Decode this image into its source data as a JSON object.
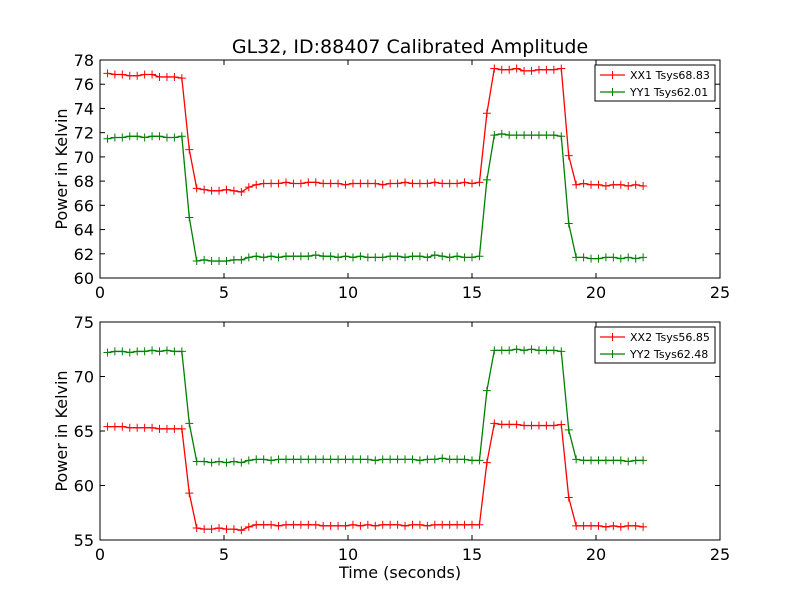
{
  "title": "GL32, ID:88407 Calibrated Amplitude",
  "colors": {
    "red": "#ff0000",
    "green": "#008000"
  },
  "chart_data": [
    {
      "type": "line",
      "title": "",
      "xlabel": "",
      "ylabel": "Power in Kelvin",
      "xlim": [
        0,
        25
      ],
      "ylim": [
        60,
        78
      ],
      "xticks": [
        0,
        5,
        10,
        15,
        20,
        25
      ],
      "yticks": [
        60,
        62,
        64,
        66,
        68,
        70,
        72,
        74,
        76,
        78
      ],
      "grid": false,
      "legend_position": "top-right",
      "series": [
        {
          "name": "XX1 Tsys68.83",
          "color": "#ff0000",
          "x": [
            0.3,
            0.6,
            0.9,
            1.2,
            1.5,
            1.8,
            2.1,
            2.4,
            2.7,
            3.0,
            3.3,
            3.6,
            3.9,
            4.2,
            4.5,
            4.8,
            5.1,
            5.4,
            5.7,
            6.0,
            6.3,
            6.6,
            6.9,
            7.2,
            7.5,
            7.8,
            8.1,
            8.4,
            8.7,
            9.0,
            9.3,
            9.6,
            9.9,
            10.2,
            10.5,
            10.8,
            11.1,
            11.4,
            11.7,
            12.0,
            12.3,
            12.6,
            12.9,
            13.2,
            13.5,
            13.8,
            14.1,
            14.4,
            14.7,
            15.0,
            15.3,
            15.6,
            15.9,
            16.2,
            16.5,
            16.8,
            17.1,
            17.4,
            17.7,
            18.0,
            18.3,
            18.6,
            18.9,
            19.2,
            19.5,
            19.8,
            20.1,
            20.4,
            20.7,
            21.0,
            21.3,
            21.6,
            21.9
          ],
          "y": [
            76.9,
            76.8,
            76.8,
            76.7,
            76.7,
            76.8,
            76.8,
            76.6,
            76.6,
            76.6,
            76.5,
            70.6,
            67.4,
            67.3,
            67.2,
            67.2,
            67.3,
            67.2,
            67.1,
            67.5,
            67.7,
            67.8,
            67.8,
            67.8,
            67.9,
            67.8,
            67.8,
            67.9,
            67.9,
            67.8,
            67.8,
            67.8,
            67.7,
            67.8,
            67.8,
            67.8,
            67.8,
            67.7,
            67.8,
            67.8,
            67.9,
            67.8,
            67.8,
            67.8,
            67.9,
            67.8,
            67.8,
            67.8,
            67.9,
            67.8,
            67.9,
            73.6,
            77.3,
            77.2,
            77.2,
            77.3,
            77.1,
            77.1,
            77.2,
            77.2,
            77.2,
            77.3,
            70.1,
            67.7,
            67.8,
            67.7,
            67.7,
            67.6,
            67.7,
            67.7,
            67.6,
            67.7,
            67.6
          ]
        },
        {
          "name": "YY1 Tsys62.01",
          "color": "#008000",
          "x": [
            0.3,
            0.6,
            0.9,
            1.2,
            1.5,
            1.8,
            2.1,
            2.4,
            2.7,
            3.0,
            3.3,
            3.6,
            3.9,
            4.2,
            4.5,
            4.8,
            5.1,
            5.4,
            5.7,
            6.0,
            6.3,
            6.6,
            6.9,
            7.2,
            7.5,
            7.8,
            8.1,
            8.4,
            8.7,
            9.0,
            9.3,
            9.6,
            9.9,
            10.2,
            10.5,
            10.8,
            11.1,
            11.4,
            11.7,
            12.0,
            12.3,
            12.6,
            12.9,
            13.2,
            13.5,
            13.8,
            14.1,
            14.4,
            14.7,
            15.0,
            15.3,
            15.6,
            15.9,
            16.2,
            16.5,
            16.8,
            17.1,
            17.4,
            17.7,
            18.0,
            18.3,
            18.6,
            18.9,
            19.2,
            19.5,
            19.8,
            20.1,
            20.4,
            20.7,
            21.0,
            21.3,
            21.6,
            21.9
          ],
          "y": [
            71.5,
            71.6,
            71.6,
            71.7,
            71.7,
            71.6,
            71.7,
            71.7,
            71.6,
            71.6,
            71.7,
            65.0,
            61.4,
            61.5,
            61.4,
            61.4,
            61.4,
            61.5,
            61.5,
            61.7,
            61.8,
            61.7,
            61.8,
            61.7,
            61.8,
            61.8,
            61.8,
            61.8,
            61.9,
            61.8,
            61.8,
            61.7,
            61.8,
            61.7,
            61.8,
            61.7,
            61.7,
            61.7,
            61.8,
            61.8,
            61.7,
            61.8,
            61.8,
            61.7,
            61.9,
            61.8,
            61.7,
            61.8,
            61.7,
            61.7,
            61.8,
            68.1,
            71.8,
            71.9,
            71.8,
            71.8,
            71.8,
            71.8,
            71.8,
            71.8,
            71.8,
            71.7,
            64.5,
            61.7,
            61.7,
            61.6,
            61.6,
            61.7,
            61.7,
            61.6,
            61.7,
            61.6,
            61.7
          ]
        }
      ]
    },
    {
      "type": "line",
      "title": "",
      "xlabel": "Time (seconds)",
      "ylabel": "Power in Kelvin",
      "xlim": [
        0,
        25
      ],
      "ylim": [
        55,
        75
      ],
      "xticks": [
        0,
        5,
        10,
        15,
        20,
        25
      ],
      "yticks": [
        55,
        60,
        65,
        70,
        75
      ],
      "grid": false,
      "legend_position": "top-right",
      "series": [
        {
          "name": "XX2 Tsys56.85",
          "color": "#ff0000",
          "x": [
            0.3,
            0.6,
            0.9,
            1.2,
            1.5,
            1.8,
            2.1,
            2.4,
            2.7,
            3.0,
            3.3,
            3.6,
            3.9,
            4.2,
            4.5,
            4.8,
            5.1,
            5.4,
            5.7,
            6.0,
            6.3,
            6.6,
            6.9,
            7.2,
            7.5,
            7.8,
            8.1,
            8.4,
            8.7,
            9.0,
            9.3,
            9.6,
            9.9,
            10.2,
            10.5,
            10.8,
            11.1,
            11.4,
            11.7,
            12.0,
            12.3,
            12.6,
            12.9,
            13.2,
            13.5,
            13.8,
            14.1,
            14.4,
            14.7,
            15.0,
            15.3,
            15.6,
            15.9,
            16.2,
            16.5,
            16.8,
            17.1,
            17.4,
            17.7,
            18.0,
            18.3,
            18.6,
            18.9,
            19.2,
            19.5,
            19.8,
            20.1,
            20.4,
            20.7,
            21.0,
            21.3,
            21.6,
            21.9
          ],
          "y": [
            65.4,
            65.4,
            65.4,
            65.3,
            65.3,
            65.3,
            65.3,
            65.2,
            65.2,
            65.2,
            65.2,
            59.3,
            56.1,
            56.0,
            56.0,
            56.1,
            56.0,
            56.0,
            55.9,
            56.2,
            56.4,
            56.4,
            56.4,
            56.3,
            56.4,
            56.4,
            56.4,
            56.4,
            56.4,
            56.3,
            56.3,
            56.3,
            56.3,
            56.4,
            56.3,
            56.4,
            56.3,
            56.4,
            56.4,
            56.4,
            56.3,
            56.4,
            56.4,
            56.3,
            56.4,
            56.4,
            56.4,
            56.4,
            56.4,
            56.4,
            56.4,
            62.1,
            65.7,
            65.6,
            65.6,
            65.6,
            65.5,
            65.5,
            65.5,
            65.5,
            65.5,
            65.6,
            58.9,
            56.3,
            56.3,
            56.3,
            56.3,
            56.2,
            56.3,
            56.2,
            56.3,
            56.3,
            56.2
          ]
        },
        {
          "name": "YY2 Tsys62.48",
          "color": "#008000",
          "x": [
            0.3,
            0.6,
            0.9,
            1.2,
            1.5,
            1.8,
            2.1,
            2.4,
            2.7,
            3.0,
            3.3,
            3.6,
            3.9,
            4.2,
            4.5,
            4.8,
            5.1,
            5.4,
            5.7,
            6.0,
            6.3,
            6.6,
            6.9,
            7.2,
            7.5,
            7.8,
            8.1,
            8.4,
            8.7,
            9.0,
            9.3,
            9.6,
            9.9,
            10.2,
            10.5,
            10.8,
            11.1,
            11.4,
            11.7,
            12.0,
            12.3,
            12.6,
            12.9,
            13.2,
            13.5,
            13.8,
            14.1,
            14.4,
            14.7,
            15.0,
            15.3,
            15.6,
            15.9,
            16.2,
            16.5,
            16.8,
            17.1,
            17.4,
            17.7,
            18.0,
            18.3,
            18.6,
            18.9,
            19.2,
            19.5,
            19.8,
            20.1,
            20.4,
            20.7,
            21.0,
            21.3,
            21.6,
            21.9
          ],
          "y": [
            72.2,
            72.3,
            72.3,
            72.2,
            72.3,
            72.3,
            72.4,
            72.3,
            72.4,
            72.3,
            72.3,
            65.7,
            62.2,
            62.2,
            62.1,
            62.2,
            62.1,
            62.2,
            62.1,
            62.3,
            62.4,
            62.4,
            62.3,
            62.4,
            62.4,
            62.4,
            62.4,
            62.4,
            62.4,
            62.4,
            62.4,
            62.4,
            62.4,
            62.4,
            62.4,
            62.4,
            62.3,
            62.4,
            62.4,
            62.4,
            62.4,
            62.4,
            62.3,
            62.4,
            62.4,
            62.5,
            62.4,
            62.4,
            62.4,
            62.3,
            62.3,
            68.7,
            72.4,
            72.4,
            72.4,
            72.5,
            72.4,
            72.5,
            72.4,
            72.4,
            72.4,
            72.3,
            65.1,
            62.4,
            62.3,
            62.3,
            62.3,
            62.3,
            62.3,
            62.3,
            62.2,
            62.3,
            62.3
          ]
        }
      ]
    }
  ]
}
